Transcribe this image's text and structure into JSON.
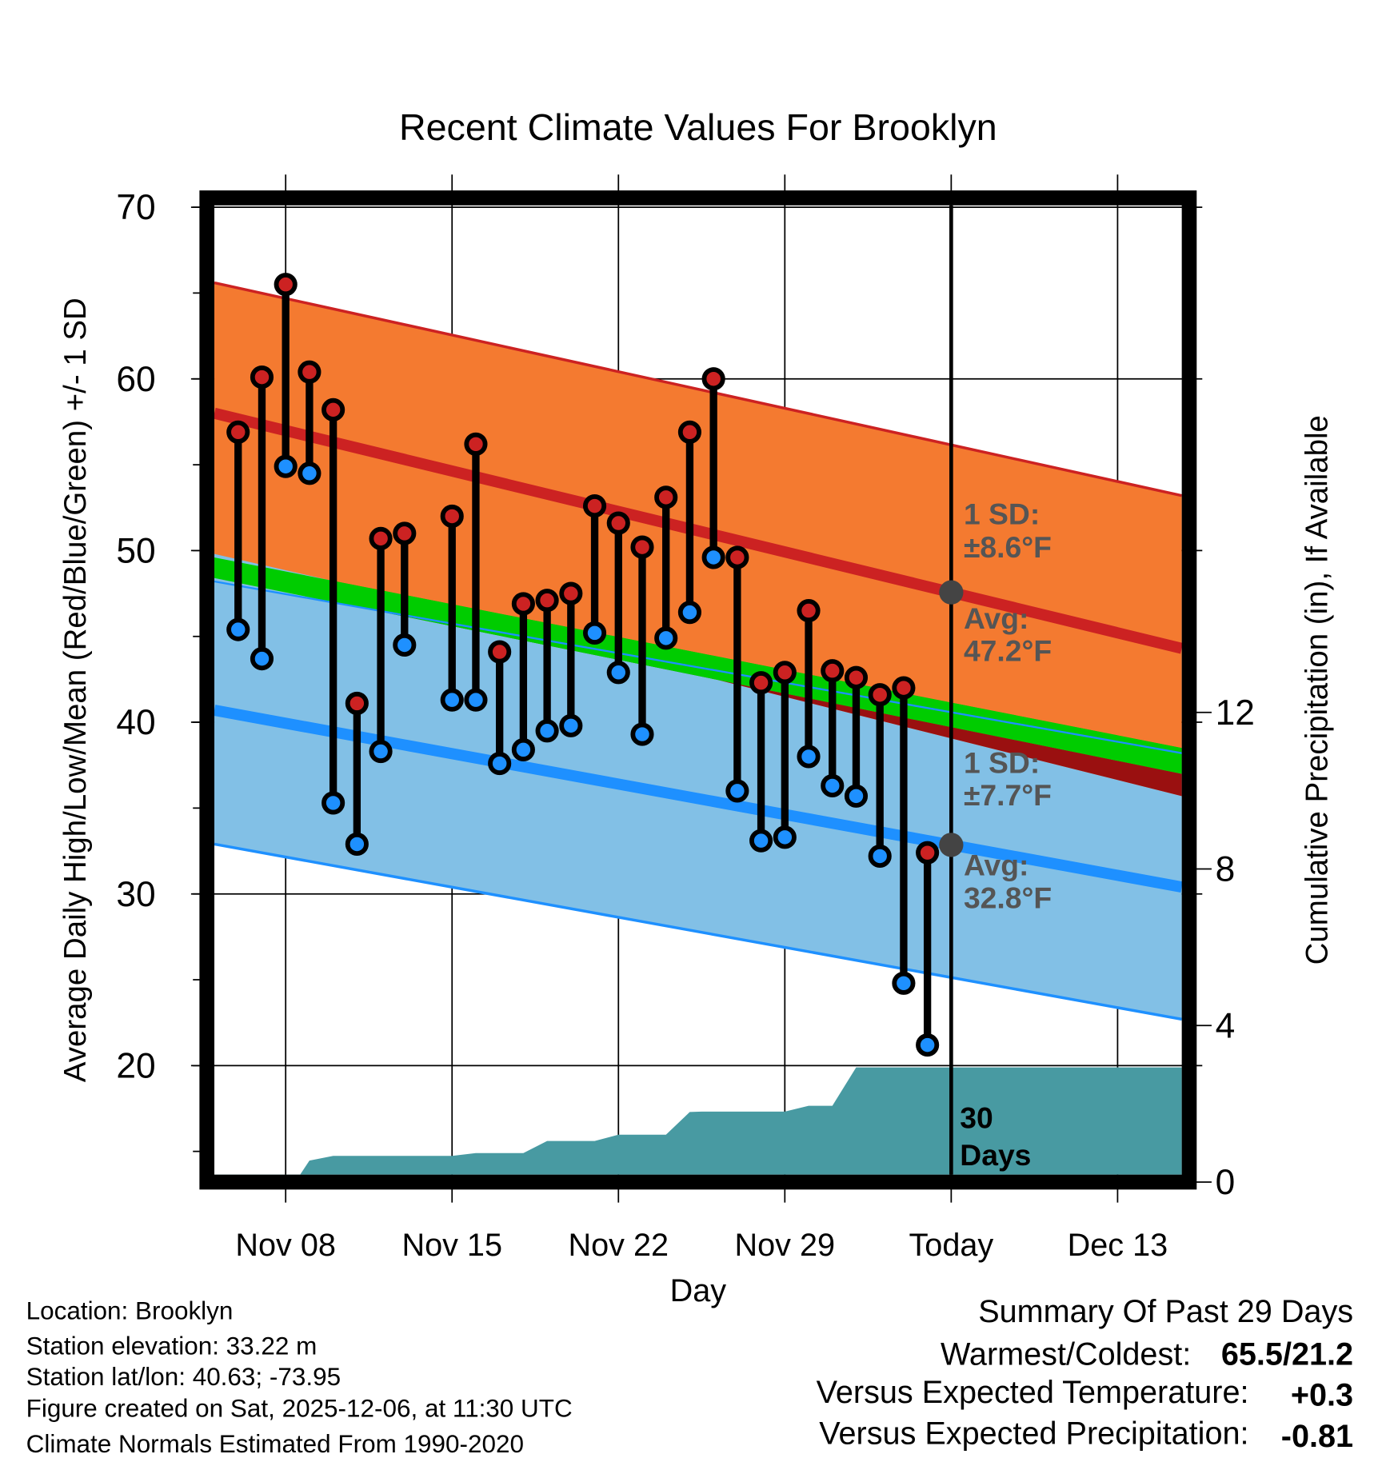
{
  "chart_data": {
    "type": "line",
    "title": "Recent Climate Values For Brooklyn",
    "xlabel": "Day",
    "ylabel": "Average Daily High/Low/Mean (Red/Blue/Green) +/- 1 SD",
    "y2label": "Cumulative Precipitation (in), If Available",
    "ylim": [
      13.7,
      70
    ],
    "y2lim": [
      0,
      16
    ],
    "xlim_day_of_november": [
      5,
      45.7
    ],
    "today_day_of_november": 36,
    "yticks": [
      "70",
      "60",
      "50",
      "40",
      "30",
      "20"
    ],
    "ytick_values": [
      70,
      60,
      50,
      40,
      30,
      20
    ],
    "y2ticks": [
      "12",
      "8",
      "4",
      "0"
    ],
    "y2tick_values": [
      12,
      8,
      4,
      0
    ],
    "xticks": [
      {
        "label": "Nov 08",
        "day": 8
      },
      {
        "label": "Nov 15",
        "day": 15
      },
      {
        "label": "Nov 22",
        "day": 22
      },
      {
        "label": "Nov 29",
        "day": 29
      },
      {
        "label": "Today",
        "day": 36
      },
      {
        "label": "Dec 13",
        "day": 43
      }
    ],
    "grid": true,
    "observations": {
      "day": [
        6,
        7,
        8,
        9,
        10,
        11,
        12,
        13,
        15,
        16,
        17,
        18,
        19,
        20,
        21,
        22,
        23,
        24,
        25,
        26,
        27,
        28,
        29,
        30,
        31,
        32,
        33,
        34,
        35
      ],
      "high": [
        56.9,
        60.1,
        65.5,
        60.4,
        58.2,
        41.1,
        50.7,
        51.0,
        52.0,
        56.2,
        44.1,
        46.9,
        47.1,
        47.5,
        52.6,
        51.6,
        50.2,
        53.1,
        56.9,
        60.0,
        49.6,
        42.3,
        42.9,
        46.5,
        43.0,
        42.6,
        41.6,
        42.0,
        32.4
      ],
      "low": [
        45.4,
        43.7,
        54.9,
        54.5,
        35.3,
        32.9,
        38.3,
        44.5,
        41.3,
        41.3,
        37.6,
        38.4,
        39.5,
        39.8,
        45.2,
        42.9,
        39.3,
        44.9,
        46.4,
        49.6,
        36.0,
        33.1,
        33.3,
        38.0,
        36.3,
        35.7,
        32.2,
        24.8,
        21.2
      ]
    },
    "normals": {
      "high_avg": [
        58.0,
        44.3
      ],
      "high_upper_sd": [
        65.6,
        53.2
      ],
      "high_lower_sd": [
        49.8,
        35.7
      ],
      "mean_band_top": [
        49.6,
        38.5
      ],
      "mean_band_bottom": [
        48.4,
        37.0
      ],
      "low_avg": [
        40.7,
        30.4
      ],
      "low_upper_sd": [
        48.2,
        38.2
      ],
      "low_lower_sd": [
        32.9,
        22.7
      ]
    },
    "precip_cumulative": [
      [
        5,
        0
      ],
      [
        8.4,
        0
      ],
      [
        9,
        0.55
      ],
      [
        10,
        0.67
      ],
      [
        15,
        0.67
      ],
      [
        16,
        0.74
      ],
      [
        18,
        0.74
      ],
      [
        19,
        1.05
      ],
      [
        21,
        1.05
      ],
      [
        22,
        1.21
      ],
      [
        24,
        1.21
      ],
      [
        25,
        1.79
      ],
      [
        25.5,
        1.8
      ],
      [
        29,
        1.8
      ],
      [
        30,
        1.95
      ],
      [
        31,
        1.95
      ],
      [
        32,
        2.93
      ],
      [
        45.7,
        2.93
      ]
    ],
    "annotations": {
      "high_sd_label": "1 SD:",
      "high_sd_value": "±8.6°F",
      "high_avg_label": "Avg:",
      "high_avg_value": "47.2°F",
      "low_sd_label": "1 SD:",
      "low_sd_value": "±7.7°F",
      "low_avg_label": "Avg:",
      "low_avg_value": "32.8°F",
      "precip_days": "30",
      "precip_days_label": "Days"
    },
    "colors": {
      "high_band": "#f47a30",
      "high_line": "#cc2222",
      "low_band": "#82c0e6",
      "low_line": "#1e90ff",
      "mean_band": "#00cc00",
      "overlap": "#9a1010",
      "precip": "#489aa2",
      "high_dot": "#cc2222",
      "low_dot": "#1e90ff"
    }
  },
  "footer": {
    "location": "Location: Brooklyn",
    "elevation": "Station elevation: 33.22 m",
    "latlon": "Station lat/lon: 40.63; -73.95",
    "created": "Figure created on Sat, 2025-12-06, at 11:30 UTC",
    "normals": "Climate Normals Estimated From 1990-2020"
  },
  "summary": {
    "title": "Summary Of Past 29 Days",
    "warmest_coldest_label": "Warmest/Coldest:",
    "warmest_coldest_value": "65.5/21.2",
    "temp_label": "Versus Expected Temperature:",
    "temp_value": "+0.3",
    "temp_color": "#d02020",
    "precip_label": "Versus Expected Precipitation:",
    "precip_value": "-0.81",
    "precip_color": "#a0522d"
  }
}
